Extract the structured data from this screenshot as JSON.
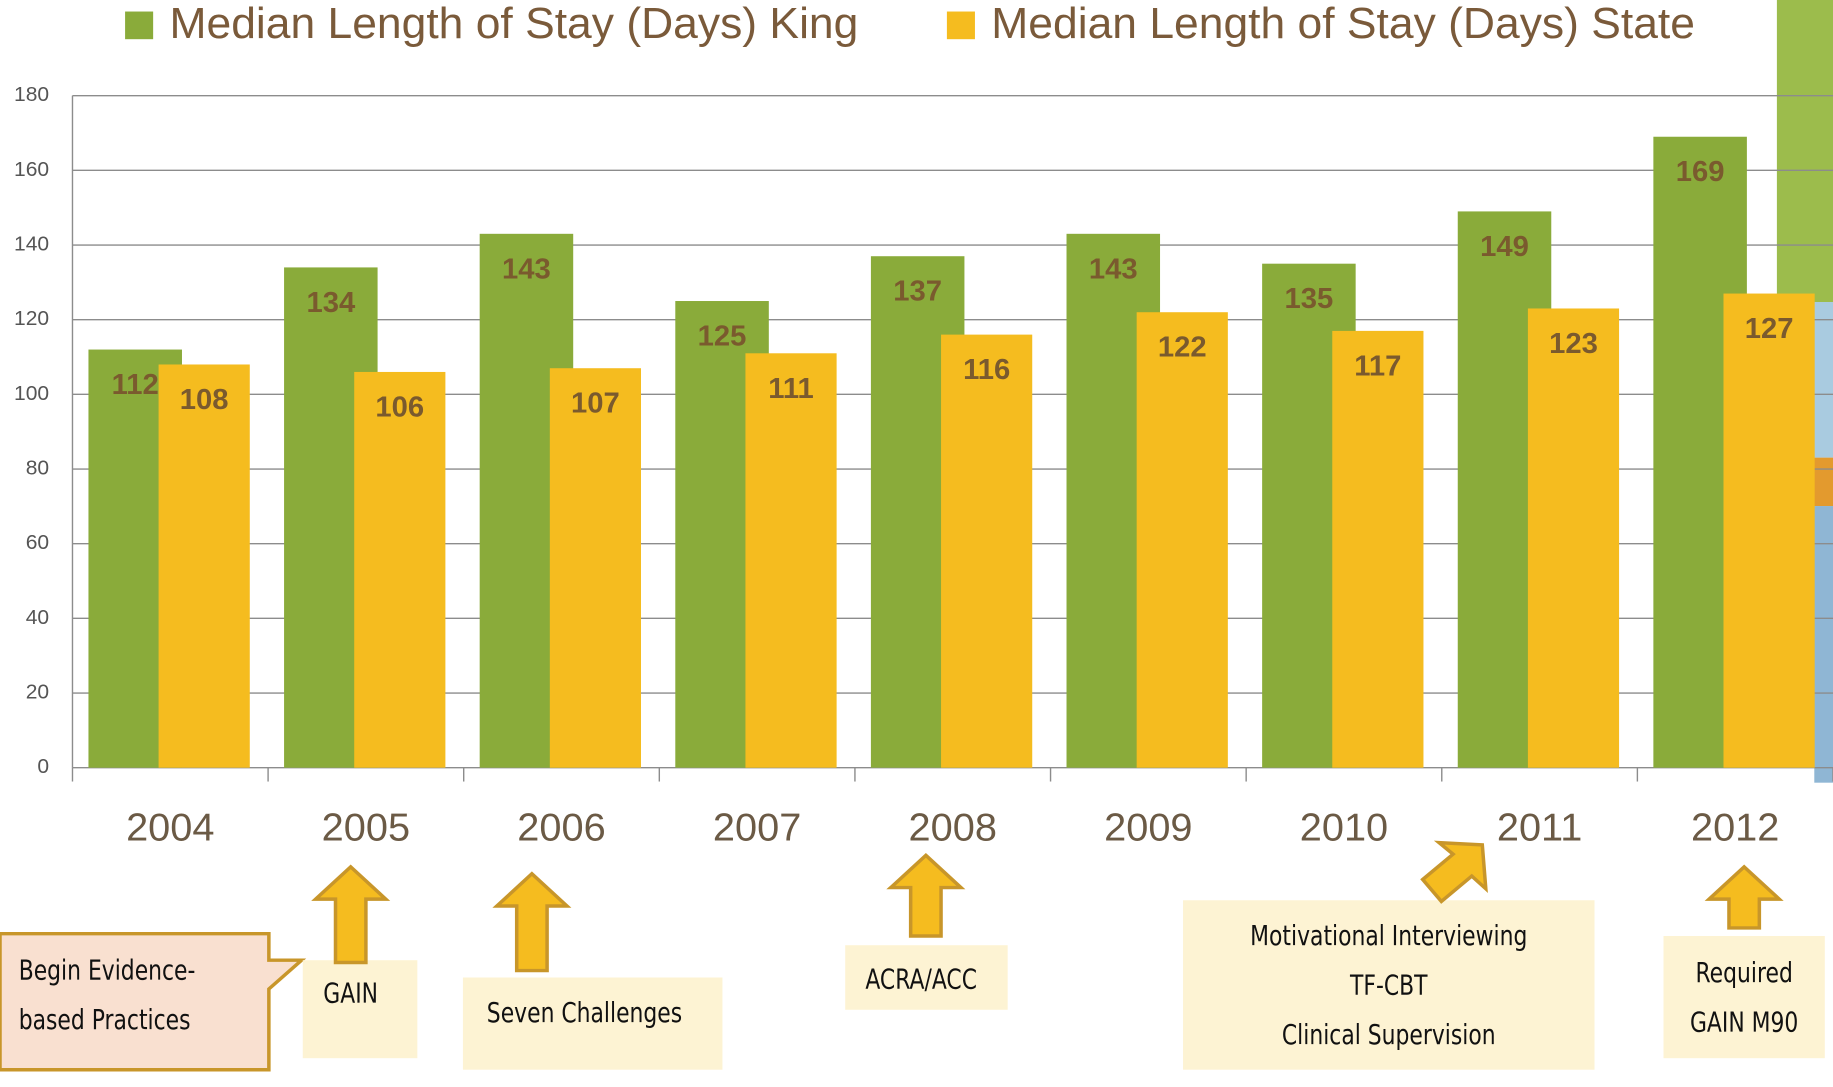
{
  "chart_data": {
    "type": "bar",
    "categories": [
      "2004",
      "2005",
      "2006",
      "2007",
      "2008",
      "2009",
      "2010",
      "2011",
      "2012"
    ],
    "series": [
      {
        "name": "Median Length of Stay (Days) King",
        "color": "#8aab3a",
        "values": [
          112,
          134,
          143,
          125,
          137,
          143,
          135,
          149,
          169
        ]
      },
      {
        "name": "Median Length of Stay (Days) State",
        "color": "#f5bc1f",
        "values": [
          108,
          106,
          107,
          111,
          116,
          122,
          117,
          123,
          127
        ]
      }
    ],
    "ylim": [
      0,
      180
    ],
    "yticks": [
      0,
      20,
      40,
      60,
      80,
      100,
      120,
      140,
      160,
      180
    ],
    "grid": true,
    "legend": "top"
  },
  "annotations": [
    {
      "lines": [
        "Begin Evidence-",
        "based Practices"
      ]
    },
    {
      "lines": [
        "GAIN"
      ]
    },
    {
      "lines": [
        "Seven Challenges"
      ]
    },
    {
      "lines": [
        "ACRA/ACC"
      ]
    },
    {
      "lines": [
        "Motivational Interviewing",
        "TF-CBT",
        "Clinical Supervision"
      ]
    },
    {
      "lines": [
        "Required",
        "GAIN M90"
      ]
    }
  ]
}
